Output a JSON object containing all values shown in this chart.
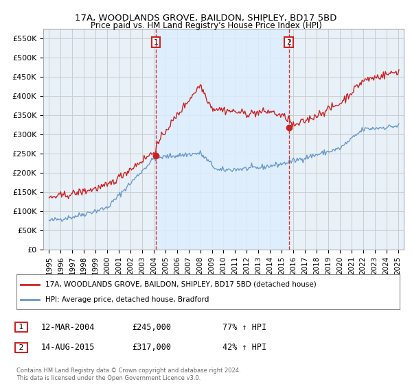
{
  "title": "17A, WOODLANDS GROVE, BAILDON, SHIPLEY, BD17 5BD",
  "subtitle": "Price paid vs. HM Land Registry's House Price Index (HPI)",
  "yticks": [
    0,
    50000,
    100000,
    150000,
    200000,
    250000,
    300000,
    350000,
    400000,
    450000,
    500000,
    550000
  ],
  "ytick_labels": [
    "£0",
    "£50K",
    "£100K",
    "£150K",
    "£200K",
    "£250K",
    "£300K",
    "£350K",
    "£400K",
    "£450K",
    "£500K",
    "£550K"
  ],
  "ylim": [
    0,
    575000
  ],
  "xlim_start": 1994.5,
  "xlim_end": 2025.5,
  "hpi_color": "#6699cc",
  "price_color": "#cc2222",
  "shade_color": "#ddeeff",
  "transaction1_x": 2004.19,
  "transaction1_y": 245000,
  "transaction2_x": 2015.62,
  "transaction2_y": 317000,
  "transaction1_label": "1",
  "transaction2_label": "2",
  "legend_line1": "17A, WOODLANDS GROVE, BAILDON, SHIPLEY, BD17 5BD (detached house)",
  "legend_line2": "HPI: Average price, detached house, Bradford",
  "annotation1_date": "12-MAR-2004",
  "annotation1_price": "£245,000",
  "annotation1_hpi": "77% ↑ HPI",
  "annotation2_date": "14-AUG-2015",
  "annotation2_price": "£317,000",
  "annotation2_hpi": "42% ↑ HPI",
  "footer": "Contains HM Land Registry data © Crown copyright and database right 2024.\nThis data is licensed under the Open Government Licence v3.0.",
  "background_color": "#ffffff",
  "grid_color": "#cccccc",
  "plot_bg_color": "#e8f0f8"
}
